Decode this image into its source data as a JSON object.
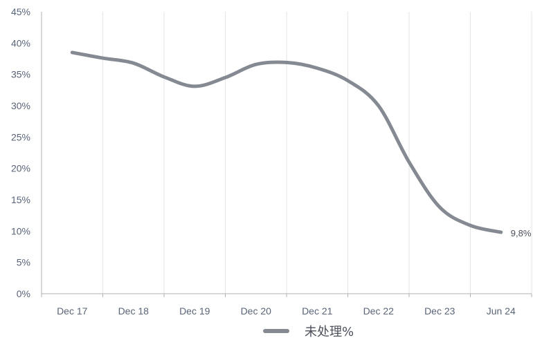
{
  "chart_data": {
    "type": "line",
    "x_labels": [
      "Dec 17",
      "Dec 18",
      "Dec 19",
      "Dec 20",
      "Dec 21",
      "Dec 22",
      "Dec 23",
      "Jun 24"
    ],
    "y_ticks": [
      "0%",
      "5%",
      "10%",
      "15%",
      "20%",
      "25%",
      "30%",
      "35%",
      "40%",
      "45%"
    ],
    "ylim": [
      0,
      45
    ],
    "grid": "vertical",
    "legend_position": "bottom",
    "series": [
      {
        "name": "未处理%",
        "color": "#858992",
        "points": [
          {
            "x": 0.0,
            "y": 38.5
          },
          {
            "x": 0.5,
            "y": 37.6
          },
          {
            "x": 1.0,
            "y": 36.8
          },
          {
            "x": 1.5,
            "y": 34.6
          },
          {
            "x": 2.0,
            "y": 33.1
          },
          {
            "x": 2.5,
            "y": 34.5
          },
          {
            "x": 3.0,
            "y": 36.6
          },
          {
            "x": 3.5,
            "y": 36.9
          },
          {
            "x": 4.0,
            "y": 36.0
          },
          {
            "x": 4.5,
            "y": 34.0
          },
          {
            "x": 5.0,
            "y": 30.0
          },
          {
            "x": 5.5,
            "y": 21.0
          },
          {
            "x": 6.0,
            "y": 13.8
          },
          {
            "x": 6.5,
            "y": 10.9
          },
          {
            "x": 7.0,
            "y": 9.8
          }
        ]
      }
    ],
    "end_label": "9,8%"
  },
  "legend": {
    "label": "未处理%"
  },
  "colors": {
    "line": "#858992",
    "grid": "#e6e6e6",
    "axis": "#b0b0b0"
  }
}
